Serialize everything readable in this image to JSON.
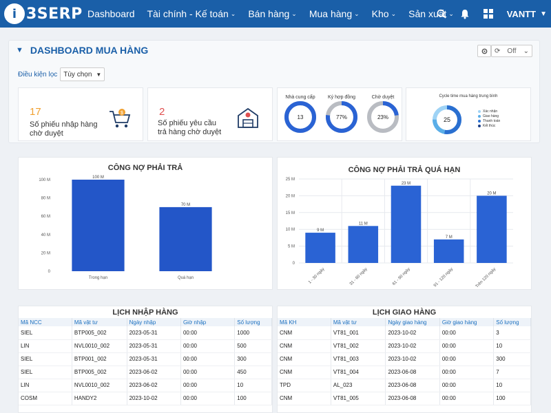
{
  "nav": {
    "logo_letter": "i",
    "logo_text": "3SERP",
    "items": [
      {
        "label": "Dashboard",
        "caret": false
      },
      {
        "label": "Tài chính - Kế toán",
        "caret": true
      },
      {
        "label": "Bán hàng",
        "caret": true
      },
      {
        "label": "Mua hàng",
        "caret": true
      },
      {
        "label": "Kho",
        "caret": true
      },
      {
        "label": "Sản xuất",
        "caret": true
      }
    ],
    "user": "VANTT"
  },
  "header": {
    "title": "DASHBOARD MUA HÀNG",
    "refresh_select": "Off"
  },
  "filter": {
    "label": "Điều kiện lọc",
    "value": "Tùy chọn"
  },
  "stats": [
    {
      "value": "17",
      "label_line1": "Số phiếu nhập hàng",
      "label_line2": "chờ duyệt",
      "color": "#f0a030"
    },
    {
      "value": "2",
      "label_line1": "Số phiếu yêu cầu",
      "label_line2": "trả hàng chờ duyệt",
      "color": "#e05050"
    }
  ],
  "donuts": [
    {
      "label": "Nhà cung cấp",
      "value": "13",
      "fraction": 1.0
    },
    {
      "label": "Ký hợp đồng",
      "value": "77%",
      "fraction": 0.77
    },
    {
      "label": "Chờ duyệt",
      "value": "23%",
      "fraction": 0.23
    }
  ],
  "cycle": {
    "title": "Cycle time mua hàng trung bình",
    "value": "25",
    "legend": [
      {
        "label": "Xác nhận",
        "color": "#9fd3f5"
      },
      {
        "label": "Giao hàng",
        "color": "#5aaee8"
      },
      {
        "label": "Thanh toán",
        "color": "#2a6fd0"
      },
      {
        "label": "Kết thúc",
        "color": "#1a3f8a"
      }
    ]
  },
  "chart_data": [
    {
      "type": "bar",
      "title": "CÔNG NỢ PHẢI TRẢ",
      "categories": [
        "Trong hạn",
        "Quá hạn"
      ],
      "values": [
        100,
        70
      ],
      "data_labels": [
        "100 M",
        "70 M"
      ],
      "yticks": [
        "100 M",
        "80 M",
        "60 M",
        "40 M",
        "20 M",
        "0"
      ],
      "ylim": [
        0,
        100
      ],
      "color": "#2356c8"
    },
    {
      "type": "bar",
      "title": "CÔNG NỢ PHẢI TRẢ QUÁ HẠN",
      "categories": [
        "1 - 30 ngày",
        "31 - 60 ngày",
        "61 - 90 ngày",
        "91 - 120 ngày",
        "Trên 120 ngày"
      ],
      "values": [
        9,
        11,
        23,
        7,
        20
      ],
      "data_labels": [
        "9 M",
        "11 M",
        "23 M",
        "7 M",
        "20 M"
      ],
      "yticks": [
        "25 M",
        "20 M",
        "15 M",
        "10 M",
        "5 M",
        "0"
      ],
      "ylim": [
        0,
        25
      ],
      "color": "#2a63d4"
    }
  ],
  "import_table": {
    "title": "LỊCH NHẬP HÀNG",
    "columns": [
      "Mã NCC",
      "Mã vật tư",
      "Ngày nhập",
      "Giờ nhập",
      "Số lượng"
    ],
    "rows": [
      [
        "SIEL",
        "BTP005_002",
        "2023-05-31",
        "00:00",
        "1000"
      ],
      [
        "LIN",
        "NVL0010_002",
        "2023-05-31",
        "00:00",
        "500"
      ],
      [
        "SIEL",
        "BTP001_002",
        "2023-05-31",
        "00:00",
        "300"
      ],
      [
        "SIEL",
        "BTP005_002",
        "2023-06-02",
        "00:00",
        "450"
      ],
      [
        "LIN",
        "NVL0010_002",
        "2023-06-02",
        "00:00",
        "10"
      ],
      [
        "COSM",
        "HANDY2",
        "2023-10-02",
        "00:00",
        "100"
      ]
    ]
  },
  "delivery_table": {
    "title": "LỊCH GIAO HÀNG",
    "columns": [
      "Mã KH",
      "Mã vật tư",
      "Ngày giao hàng",
      "Giờ giao hàng",
      "Số lượng"
    ],
    "rows": [
      [
        "CNM",
        "VT81_001",
        "2023-10-02",
        "00:00",
        "3"
      ],
      [
        "CNM",
        "VT81_002",
        "2023-10-02",
        "00:00",
        "10"
      ],
      [
        "CNM",
        "VT81_003",
        "2023-10-02",
        "00:00",
        "300"
      ],
      [
        "CNM",
        "VT81_004",
        "2023-06-08",
        "00:00",
        "7"
      ],
      [
        "TPD",
        "AL_023",
        "2023-06-08",
        "00:00",
        "10"
      ],
      [
        "CNM",
        "VT81_005",
        "2023-06-08",
        "00:00",
        "100"
      ]
    ]
  }
}
